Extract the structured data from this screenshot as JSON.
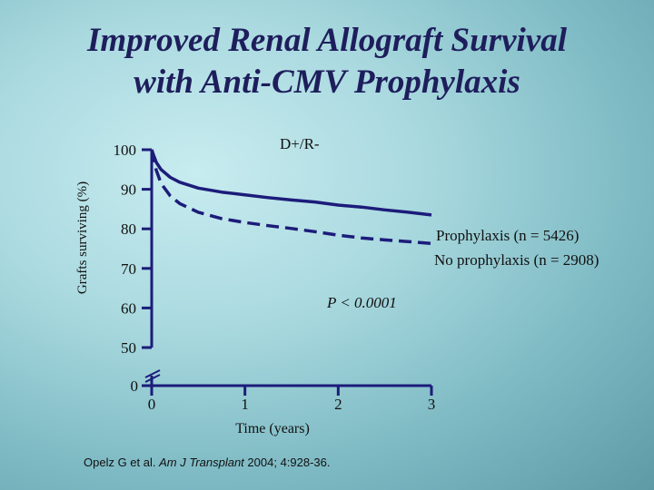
{
  "title": {
    "line1": "Improved Renal Allograft Survival",
    "line2": "with Anti-CMV Prophylaxis"
  },
  "citation": {
    "authors": "Opelz G et al.",
    "journal": "Am J Transplant",
    "details": "2004; 4:928-36."
  },
  "colors": {
    "axis": "#1c1c7a",
    "series_solid": "#1c1c7a",
    "series_dashed": "#1c1c7a",
    "title": "#1e1e5c"
  },
  "chart_data": {
    "type": "line",
    "subgroup_label": "D+/R-",
    "xlabel": "Time (years)",
    "ylabel": "Grafts surviving (%)",
    "x_ticks": [
      "0",
      "1",
      "2",
      "3"
    ],
    "y_ticks": [
      "100",
      "90",
      "80",
      "70",
      "60",
      "50",
      "0"
    ],
    "xlim": [
      0,
      3
    ],
    "ylim": [
      50,
      100
    ],
    "axis_break": true,
    "p_value": "P < 0.0001",
    "series": [
      {
        "name": "Prophylaxis (n = 5426)",
        "style": "solid",
        "x": [
          0,
          0.02,
          0.05,
          0.1,
          0.2,
          0.3,
          0.5,
          0.75,
          1.0,
          1.25,
          1.5,
          1.75,
          2.0,
          2.25,
          2.5,
          2.75,
          3.0
        ],
        "y": [
          100,
          98.6,
          96.8,
          95,
          93,
          91.8,
          90.3,
          89.3,
          88.6,
          87.9,
          87.3,
          86.8,
          86,
          85.5,
          84.8,
          84.2,
          83.5
        ]
      },
      {
        "name": "No prophylaxis (n = 2908)",
        "style": "dashed",
        "x": [
          0,
          0.02,
          0.05,
          0.1,
          0.2,
          0.3,
          0.5,
          0.75,
          1.0,
          1.25,
          1.5,
          1.75,
          2.0,
          2.25,
          2.5,
          2.75,
          3.0
        ],
        "y": [
          100,
          97.6,
          94.8,
          91.5,
          88.3,
          86.4,
          84.2,
          82.6,
          81.6,
          80.8,
          80.1,
          79.3,
          78.4,
          77.7,
          77.2,
          76.8,
          76.3
        ]
      }
    ]
  }
}
